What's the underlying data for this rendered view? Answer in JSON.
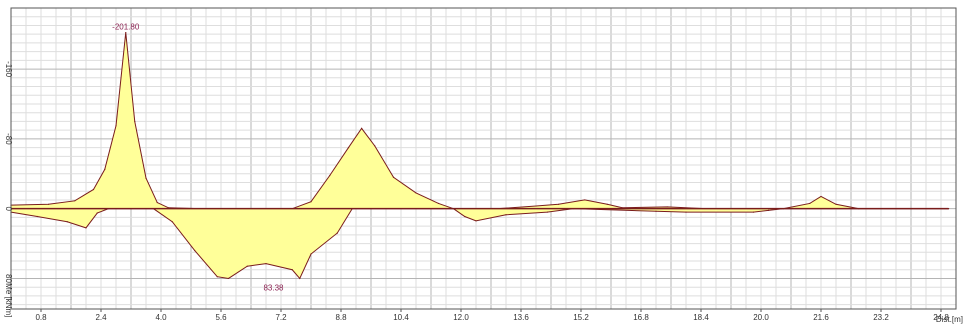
{
  "chart_data": {
    "type": "area",
    "xlabel": "Dist.[m]",
    "ylabel": "Me [kNm]",
    "xlim": [
      0,
      25.2
    ],
    "ylim": [
      -230,
      115
    ],
    "y_inverted": true,
    "grid": true,
    "x_ticks": [
      0.8,
      2.4,
      4.0,
      5.6,
      7.2,
      8.8,
      10.4,
      12.0,
      13.6,
      15.2,
      16.8,
      18.4,
      20.0,
      21.6,
      23.2,
      24.8
    ],
    "x_tick_labels": [
      "0.8",
      "2.4",
      "4.0",
      "5.6",
      "7.2",
      "8.8",
      "10.4",
      "12.0",
      "13.6",
      "15.2",
      "16.8",
      "18.4",
      "20.0",
      "21.6",
      "23.2",
      "24.8"
    ],
    "y_ticks": [
      -160,
      -80,
      0,
      80
    ],
    "y_tick_labels": [
      "-160",
      "-80",
      "0",
      "80"
    ],
    "colors": {
      "fill": "#ffff99",
      "line": "#7a1c1c",
      "annotation": "#8b2252",
      "grid": "#c8c8c8",
      "zero": "#7a1c1c"
    },
    "series": [
      {
        "values": [
          [
            0.0,
            -4
          ],
          [
            1.0,
            -5
          ],
          [
            1.7,
            -9
          ],
          [
            2.2,
            -22
          ],
          [
            2.5,
            -45
          ],
          [
            2.8,
            -95
          ],
          [
            3.06,
            -201.8
          ],
          [
            3.3,
            -100
          ],
          [
            3.6,
            -35
          ],
          [
            3.9,
            -7
          ],
          [
            4.2,
            -1
          ],
          [
            5.0,
            0
          ],
          [
            7.5,
            0
          ],
          [
            8.0,
            -8
          ],
          [
            8.5,
            -38
          ],
          [
            9.0,
            -70
          ],
          [
            9.35,
            -92
          ],
          [
            9.7,
            -72
          ],
          [
            10.2,
            -36
          ],
          [
            10.8,
            -18
          ],
          [
            11.4,
            -6
          ],
          [
            11.8,
            0
          ],
          [
            13.0,
            0
          ],
          [
            14.0,
            -3
          ],
          [
            14.6,
            -5
          ],
          [
            15.3,
            -10
          ],
          [
            15.9,
            -5
          ],
          [
            16.3,
            -1
          ],
          [
            17.5,
            -2
          ],
          [
            18.5,
            0
          ],
          [
            20.6,
            0
          ],
          [
            21.3,
            -6
          ],
          [
            21.6,
            -14
          ],
          [
            22.0,
            -5
          ],
          [
            22.6,
            0
          ],
          [
            25.0,
            0
          ]
        ]
      },
      {
        "values": [
          [
            0.0,
            4
          ],
          [
            0.7,
            9
          ],
          [
            1.5,
            15
          ],
          [
            2.0,
            22
          ],
          [
            2.3,
            5
          ],
          [
            2.6,
            0
          ],
          [
            3.8,
            0
          ],
          [
            4.3,
            15
          ],
          [
            4.9,
            48
          ],
          [
            5.5,
            78
          ],
          [
            5.8,
            80
          ],
          [
            6.3,
            66
          ],
          [
            6.8,
            63
          ],
          [
            7.5,
            70
          ],
          [
            7.7,
            80
          ],
          [
            8.0,
            52
          ],
          [
            8.7,
            28
          ],
          [
            9.1,
            0
          ],
          [
            11.8,
            0
          ],
          [
            12.1,
            9
          ],
          [
            12.4,
            14
          ],
          [
            13.2,
            7
          ],
          [
            14.3,
            4
          ],
          [
            15.0,
            0
          ],
          [
            17.2,
            3
          ],
          [
            18.0,
            4
          ],
          [
            19.8,
            4
          ],
          [
            20.2,
            2
          ],
          [
            20.6,
            0
          ],
          [
            25.0,
            0
          ]
        ]
      }
    ],
    "annotations": [
      {
        "text": "-201.80",
        "x": 3.06,
        "y": -201.8
      },
      {
        "text": "83.38",
        "x": 7.0,
        "y": 83.38
      }
    ]
  }
}
